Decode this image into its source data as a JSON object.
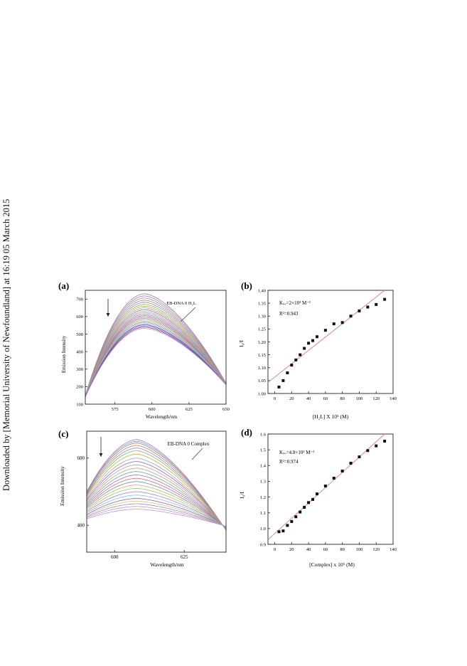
{
  "side_note": "Downloaded by [Memorial University of Newfoundland] at 16:19 05 March 2015",
  "panels": {
    "a": {
      "label": "(a)",
      "annotation": "EB-DNA 0 H₂L",
      "xlabel": "Wavelength/nm",
      "ylabel": "Emission Intensity"
    },
    "b": {
      "label": "(b)",
      "ksv_text": "Kₛᵥ=2×10³ M⁻¹",
      "r2_text": "R²=0.943",
      "xlabel": "[H₂L] X 10⁵ (M)",
      "ylabel": "I₀/I"
    },
    "c": {
      "label": "(c)",
      "annotation": "EB-DNA 0 Complex",
      "xlabel": "Wavelength/nm",
      "ylabel": "Emission Intensity"
    },
    "d": {
      "label": "(d)",
      "ksv_text": "Kₛᵥ=4.8×10³ M⁻¹",
      "r2_text": "R²=0.974",
      "xlabel": "[Complex] x 10⁵ (M)",
      "ylabel": "I₀/I"
    }
  },
  "chart_data": [
    {
      "id": "a",
      "type": "line",
      "xlabel": "Wavelength/nm",
      "ylabel": "Emission Intensity",
      "xlim": [
        555,
        650
      ],
      "ylim": [
        100,
        750
      ],
      "xticks": [
        575,
        600,
        625,
        650
      ],
      "yticks": [
        100,
        200,
        300,
        400,
        500,
        600,
        700
      ],
      "series_peaks": [
        730,
        718,
        706,
        694,
        682,
        670,
        660,
        650,
        640,
        630,
        622,
        614,
        606,
        598,
        590,
        582,
        575,
        568,
        561,
        554,
        547,
        540,
        533
      ],
      "peak_x": 595,
      "left_y": 140,
      "right_y": 210,
      "colors": [
        "#888888",
        "#d46a9c",
        "#5aa6e0",
        "#e07a5a",
        "#9b7fd4",
        "#6cc26c",
        "#e0a23c",
        "#7fb0c8",
        "#c85a8a",
        "#a0a0e0",
        "#d49b6a",
        "#5ab0a0",
        "#b06ad4",
        "#e06a6a",
        "#6a8ad4",
        "#c8b05a",
        "#8ad46a",
        "#d46ad4",
        "#6ad4d4",
        "#4a3f9a",
        "#a05ab0",
        "#7a3f8a",
        "#b89ad8"
      ],
      "arrow": "down"
    },
    {
      "id": "b",
      "type": "scatter",
      "xlabel": "[H₂L] X 10⁵ (M)",
      "ylabel": "I₀/I",
      "xlim": [
        -8,
        140
      ],
      "ylim": [
        1.0,
        1.4
      ],
      "xticks": [
        0,
        20,
        40,
        60,
        80,
        100,
        120,
        140
      ],
      "yticks": [
        1.0,
        1.05,
        1.1,
        1.15,
        1.2,
        1.25,
        1.3,
        1.35,
        1.4
      ],
      "points": [
        [
          5,
          1.025
        ],
        [
          10,
          1.05
        ],
        [
          15,
          1.08
        ],
        [
          20,
          1.11
        ],
        [
          25,
          1.13
        ],
        [
          30,
          1.15
        ],
        [
          35,
          1.175
        ],
        [
          40,
          1.195
        ],
        [
          45,
          1.205
        ],
        [
          50,
          1.22
        ],
        [
          60,
          1.245
        ],
        [
          70,
          1.27
        ],
        [
          80,
          1.275
        ],
        [
          90,
          1.3
        ],
        [
          100,
          1.32
        ],
        [
          110,
          1.335
        ],
        [
          120,
          1.345
        ],
        [
          130,
          1.365
        ]
      ],
      "fit": [
        [
          -8,
          1.043
        ],
        [
          130,
          1.4
        ]
      ]
    },
    {
      "id": "c",
      "type": "line",
      "xlabel": "Wavelength/nm",
      "ylabel": "Emission Intensity",
      "xlim": [
        590,
        640
      ],
      "ylim": [
        320,
        680
      ],
      "xticks": [
        600,
        625
      ],
      "yticks": [
        400,
        600
      ],
      "series_peaks": [
        655,
        650,
        645,
        638,
        630,
        622,
        612,
        600,
        590,
        580,
        570,
        560,
        550,
        540,
        530,
        520,
        510,
        500,
        490,
        480,
        472,
        464,
        456,
        448
      ],
      "peak_x": 608,
      "left_y_offset": 155,
      "right_y_offset": 270,
      "colors": [
        "#d46a9c",
        "#5aa6e0",
        "#888888",
        "#e07a5a",
        "#9b7fd4",
        "#6cc26c",
        "#e0a23c",
        "#7fb0c8",
        "#c85a8a",
        "#a0a0e0",
        "#d49b6a",
        "#5ab0a0",
        "#b06ad4",
        "#e06a6a",
        "#6a8ad4",
        "#c8b05a",
        "#8ad46a",
        "#d46ad4",
        "#6ad4d4",
        "#a05ab0",
        "#e0c06a",
        "#7a9ad8",
        "#d890c0",
        "#b89ad8"
      ],
      "arrow": "down"
    },
    {
      "id": "d",
      "type": "scatter",
      "xlabel": "[Complex] x 10⁵ (M)",
      "ylabel": "I₀/I",
      "xlim": [
        -8,
        140
      ],
      "ylim": [
        0.9,
        1.6
      ],
      "xticks": [
        0,
        20,
        40,
        60,
        80,
        100,
        120,
        140
      ],
      "yticks": [
        0.9,
        1.0,
        1.1,
        1.2,
        1.3,
        1.4,
        1.5,
        1.6
      ],
      "points": [
        [
          5,
          0.98
        ],
        [
          10,
          0.985
        ],
        [
          15,
          1.02
        ],
        [
          20,
          1.045
        ],
        [
          25,
          1.075
        ],
        [
          30,
          1.105
        ],
        [
          35,
          1.135
        ],
        [
          40,
          1.165
        ],
        [
          45,
          1.185
        ],
        [
          50,
          1.22
        ],
        [
          60,
          1.27
        ],
        [
          70,
          1.32
        ],
        [
          80,
          1.365
        ],
        [
          90,
          1.415
        ],
        [
          100,
          1.455
        ],
        [
          110,
          1.495
        ],
        [
          120,
          1.525
        ],
        [
          130,
          1.555
        ]
      ],
      "fit": [
        [
          -8,
          0.93
        ],
        [
          130,
          1.6
        ]
      ]
    }
  ]
}
